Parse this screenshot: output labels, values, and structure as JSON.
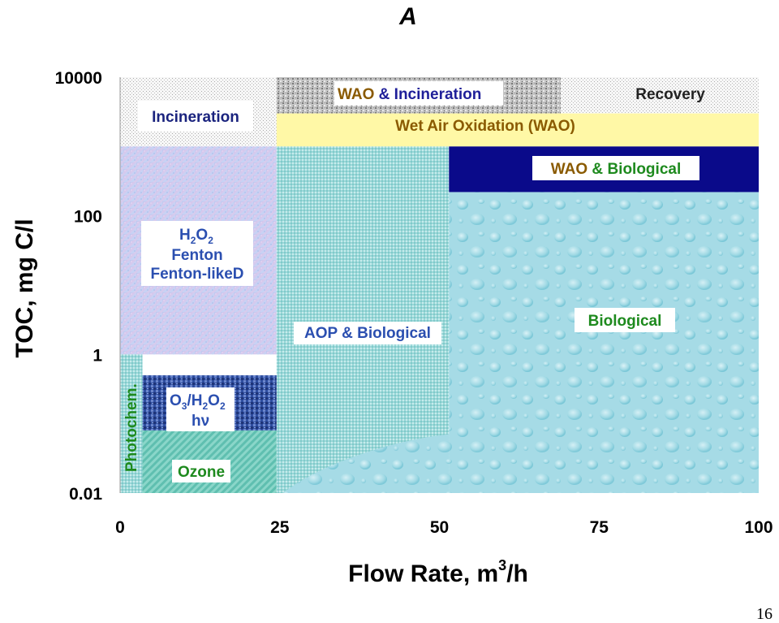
{
  "chart_data": {
    "type": "region-map",
    "title": "A",
    "xlabel_main": "Flow Rate, m",
    "xlabel_sup": "3",
    "xlabel_tail": "/h",
    "ylabel": "TOC, mg C/l",
    "x_range": [
      0,
      100
    ],
    "y_range": [
      0.01,
      10000
    ],
    "y_scale": "log",
    "x_ticks": [
      "0",
      "25",
      "50",
      "75",
      "100"
    ],
    "y_ticks": [
      "10000",
      "100",
      "1",
      "0.01"
    ],
    "regions": [
      {
        "key": "incineration",
        "label": "Incineration",
        "x": [
          0,
          24.5
        ],
        "y": [
          1000,
          10000
        ]
      },
      {
        "key": "wao_incineration",
        "label_a": "WAO",
        "label_amp": " & ",
        "label_b": "Incineration",
        "x": [
          24.5,
          69
        ],
        "y": [
          3000,
          10000
        ]
      },
      {
        "key": "recovery",
        "label": "Recovery",
        "x": [
          69,
          100
        ],
        "y": [
          3000,
          10000
        ]
      },
      {
        "key": "wao",
        "label": "Wet Air Oxidation (WAO)",
        "x": [
          24.5,
          100
        ],
        "y": [
          1000,
          3000
        ]
      },
      {
        "key": "wao_biological",
        "label_a": "WAO",
        "label_amp": " & ",
        "label_b": "Biological",
        "x": [
          51.5,
          100
        ],
        "y": [
          220,
          1000
        ]
      },
      {
        "key": "h2o2_fenton",
        "label_h": "H",
        "label_h_sub": "2",
        "label_o": "O",
        "label_o_sub": "2",
        "label_2": "Fenton",
        "label_3": "Fenton-likeD",
        "x": [
          0,
          24.5
        ],
        "y": [
          1,
          1000
        ]
      },
      {
        "key": "aop_biological",
        "label": "AOP & Biological",
        "x": [
          24.5,
          51.5
        ],
        "y": [
          0.01,
          1000
        ]
      },
      {
        "key": "biological",
        "label": "Biological",
        "x": [
          51.5,
          100
        ],
        "y": [
          0.01,
          220
        ]
      },
      {
        "key": "o3_h2o2_hv",
        "label_o": "O",
        "label_o_sub": "3",
        "label_slash": "/H",
        "label_h_sub": "2",
        "label_o2": "O",
        "label_o2_sub": "2",
        "label_2": "hν",
        "x": [
          3.5,
          24.5
        ],
        "y": [
          0.08,
          0.5
        ]
      },
      {
        "key": "ozone",
        "label": "Ozone",
        "x": [
          3.5,
          24.5
        ],
        "y": [
          0.01,
          0.08
        ]
      },
      {
        "key": "photochem",
        "label": "Photochem.",
        "x": [
          0,
          3.5
        ],
        "y": [
          0.01,
          1
        ]
      }
    ]
  },
  "page_number": "16",
  "colors": {
    "wao_text": "#8a5a00",
    "amp_text": "#1f1f99",
    "incineration_text": "#1a237e",
    "green_text": "#1e8a1e",
    "blue_text": "#2b4fb0",
    "navy_band": "#0a0a8a",
    "yellow_band": "#fff8a6",
    "light_blue": "#a5dbe6",
    "teal": "#8fd4d4"
  }
}
